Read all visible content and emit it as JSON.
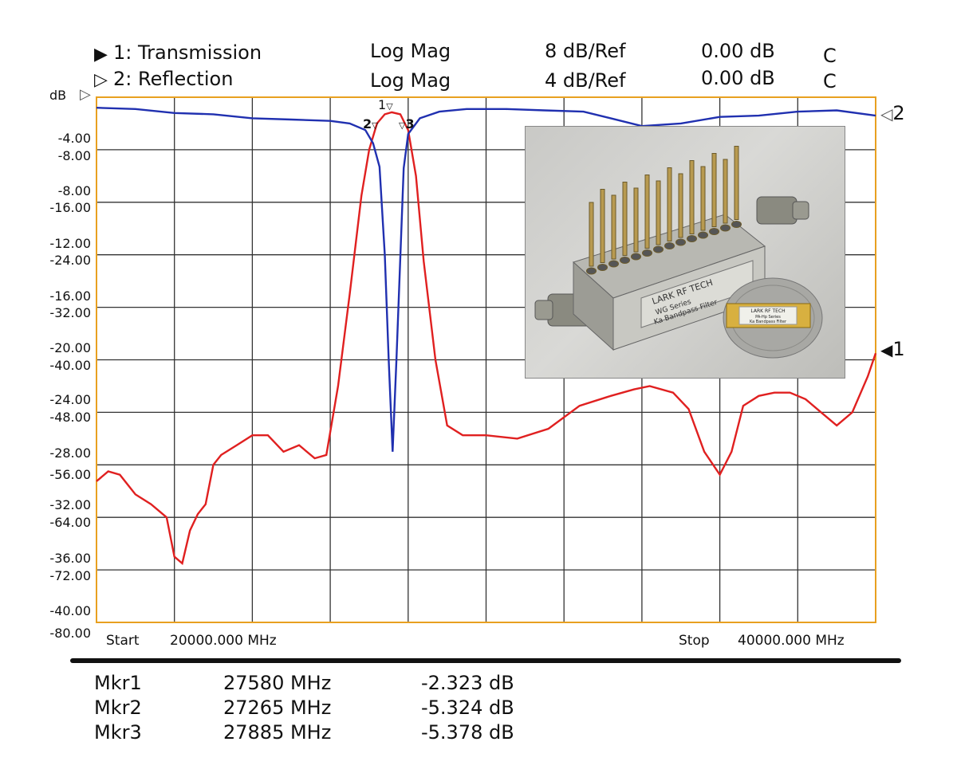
{
  "header": {
    "trace1": {
      "name": "1: Transmission",
      "format": "Log Mag",
      "scale": "8 dB/Ref",
      "ref": "0.00 dB",
      "flag": "C"
    },
    "trace2": {
      "name": "2: Reflection",
      "format": "Log Mag",
      "scale": "4 dB/Ref",
      "ref": "0.00 dB",
      "flag": "C"
    }
  },
  "axis": {
    "unit": "dB",
    "y_labels_reflection": [
      "-4.00",
      "-8.00",
      "-12.00",
      "-16.00",
      "-20.00",
      "-24.00",
      "-28.00",
      "-32.00",
      "-36.00",
      "-40.00"
    ],
    "y_labels_transmission": [
      "-8.00",
      "-16.00",
      "-24.00",
      "-32.00",
      "-40.00",
      "-48.00",
      "-56.00",
      "-64.00",
      "-72.00",
      "-80.00"
    ],
    "start_label": "Start",
    "start_value": "20000.000 MHz",
    "stop_label": "Stop",
    "stop_value": "40000.000 MHz"
  },
  "markers": [
    {
      "name": "Mkr1",
      "freq": "27580 MHz",
      "value": "-2.323 dB"
    },
    {
      "name": "Mkr2",
      "freq": "27265 MHz",
      "value": "-5.324 dB"
    },
    {
      "name": "Mkr3",
      "freq": "27885 MHz",
      "value": "-5.378 dB"
    }
  ],
  "marker_tags": [
    "1",
    "2",
    "3"
  ],
  "trace_end_tags": {
    "transmission": "1",
    "reflection": "2"
  },
  "photo": {
    "filter_label": [
      "LARK RF TECH",
      "WG Series",
      "Ka Bandpass Filter"
    ],
    "chip_label": [
      "LARK RF TECH",
      "PA-Hp Series",
      "Ka Bandpass Filter"
    ]
  },
  "chart_data": {
    "type": "line",
    "xlim": [
      20000,
      40000
    ],
    "grid": true,
    "colors": {
      "transmission": "#e02020",
      "reflection": "#2030b0",
      "grid": "#333333",
      "frame": "#e8a020"
    },
    "series": [
      {
        "name": "1: Transmission",
        "ylim": [
          -80,
          0
        ],
        "x": [
          20000,
          20300,
          20600,
          21000,
          21400,
          21800,
          22000,
          22200,
          22400,
          22600,
          22800,
          23000,
          23200,
          23600,
          24000,
          24400,
          24800,
          25200,
          25600,
          25900,
          26200,
          26500,
          26800,
          27000,
          27200,
          27400,
          27580,
          27800,
          28000,
          28200,
          28400,
          28700,
          29000,
          29400,
          30000,
          30800,
          31600,
          32400,
          33200,
          33800,
          34200,
          34800,
          35200,
          35600,
          36000,
          36300,
          36600,
          37000,
          37400,
          37800,
          38200,
          38600,
          39000,
          39400,
          39800,
          40000
        ],
        "y": [
          -58.5,
          -57.0,
          -57.5,
          -60.5,
          -62.0,
          -64.0,
          -70.0,
          -71.0,
          -66.0,
          -63.5,
          -62.0,
          -56.0,
          -54.5,
          -53.0,
          -51.5,
          -51.5,
          -54.0,
          -53.0,
          -55.0,
          -54.5,
          -44.0,
          -30.0,
          -15.0,
          -8.0,
          -4.0,
          -2.6,
          -2.3,
          -2.6,
          -5.0,
          -12.0,
          -25.0,
          -40.0,
          -50.0,
          -51.5,
          -51.5,
          -52.0,
          -50.5,
          -47.0,
          -45.5,
          -44.5,
          -44.0,
          -45.0,
          -47.5,
          -54.0,
          -57.5,
          -54.0,
          -47.0,
          -45.5,
          -45.0,
          -45.0,
          -46.0,
          -48.0,
          -50.0,
          -48.0,
          -42.5,
          -39.0
        ]
      },
      {
        "name": "2: Reflection",
        "ylim": [
          -40,
          0
        ],
        "x": [
          20000,
          21000,
          22000,
          23000,
          24000,
          25000,
          26000,
          26500,
          26900,
          27100,
          27265,
          27400,
          27500,
          27600,
          27700,
          27885,
          28000,
          28300,
          28800,
          29500,
          30500,
          31500,
          32500,
          33200,
          34000,
          35000,
          36000,
          37000,
          38000,
          39000,
          40000
        ],
        "y": [
          -0.8,
          -0.9,
          -1.2,
          -1.3,
          -1.6,
          -1.7,
          -1.8,
          -2.0,
          -2.5,
          -3.5,
          -5.3,
          -12.0,
          -20.0,
          -27.0,
          -20.0,
          -5.4,
          -2.8,
          -1.6,
          -1.1,
          -0.9,
          -0.9,
          -1.0,
          -1.1,
          -1.6,
          -2.2,
          -2.0,
          -1.5,
          -1.4,
          -1.1,
          -1.0,
          -1.4
        ]
      }
    ]
  }
}
